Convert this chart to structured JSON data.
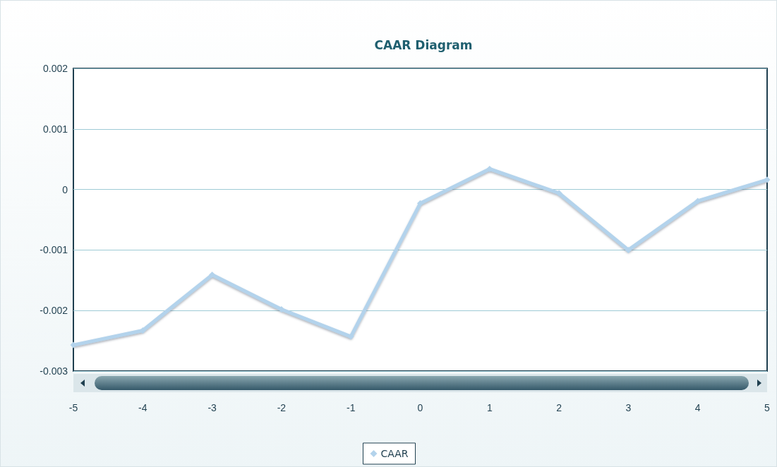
{
  "chart_data": {
    "type": "line",
    "title": "CAAR Diagram",
    "x": [
      -5,
      -4,
      -3,
      -2,
      -1,
      0,
      1,
      2,
      3,
      4,
      5
    ],
    "series": [
      {
        "name": "CAAR",
        "color": "#b3d3ec",
        "values": [
          -0.00257,
          -0.00233,
          -0.00141,
          -0.00198,
          -0.00243,
          -0.00023,
          0.00034,
          -6e-05,
          -0.001,
          -0.00019,
          0.00016
        ]
      }
    ],
    "xlim": [
      -5,
      5
    ],
    "xticks": [
      -5,
      -4,
      -3,
      -2,
      -1,
      0,
      1,
      2,
      3,
      4,
      5
    ],
    "ylim": [
      -0.003,
      0.002
    ],
    "yticks": [
      -0.003,
      -0.002,
      -0.001,
      0,
      0.001,
      0.002
    ],
    "grid": "y",
    "legend": "bottom",
    "marker": "diamond",
    "line_style": "solid"
  }
}
